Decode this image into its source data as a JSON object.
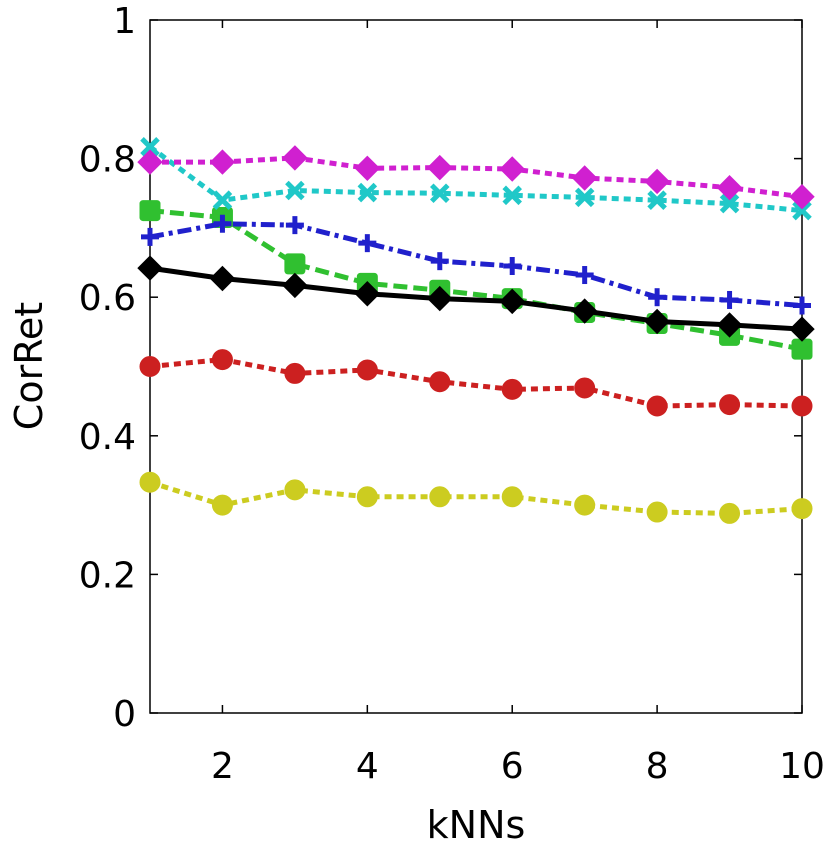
{
  "chart_data": {
    "type": "line",
    "title": "",
    "xlabel": "kNNs",
    "ylabel": "CorRet",
    "xlim": [
      1,
      10
    ],
    "ylim": [
      0,
      1
    ],
    "xticks": [
      2,
      4,
      6,
      8,
      10
    ],
    "yticks": [
      0,
      0.2,
      0.4,
      0.6,
      0.8,
      1
    ],
    "xtick_labels": [
      "2",
      "4",
      "6",
      "8",
      "10"
    ],
    "ytick_labels": [
      "0",
      "0.2",
      "0.4",
      "0.6",
      "0.8",
      "1"
    ],
    "grid": false,
    "legend": "none",
    "x": [
      1,
      2,
      3,
      4,
      5,
      6,
      7,
      8,
      9,
      10
    ],
    "series": [
      {
        "color": "#cc2020",
        "marker": "circle",
        "dash": "dotted",
        "values": [
          0.5,
          0.51,
          0.49,
          0.495,
          0.478,
          0.467,
          0.469,
          0.443,
          0.445,
          0.443
        ]
      },
      {
        "color": "#cccc20",
        "marker": "circle",
        "dash": "dotted",
        "values": [
          0.333,
          0.3,
          0.322,
          0.312,
          0.312,
          0.312,
          0.3,
          0.29,
          0.288,
          0.295
        ]
      },
      {
        "color": "#30c030",
        "marker": "square",
        "dash": "dashed",
        "values": [
          0.725,
          0.715,
          0.648,
          0.62,
          0.61,
          0.598,
          0.578,
          0.562,
          0.545,
          0.525
        ]
      },
      {
        "color": "#2020cc",
        "marker": "plus",
        "dash": "dashdot",
        "values": [
          0.687,
          0.706,
          0.704,
          0.678,
          0.652,
          0.645,
          0.632,
          0.6,
          0.596,
          0.588
        ]
      },
      {
        "color": "#20c8c8",
        "marker": "x",
        "dash": "dotted",
        "values": [
          0.817,
          0.74,
          0.754,
          0.751,
          0.75,
          0.747,
          0.744,
          0.74,
          0.735,
          0.725
        ]
      },
      {
        "color": "#d020d0",
        "marker": "diamond",
        "dash": "dotted",
        "values": [
          0.795,
          0.795,
          0.801,
          0.786,
          0.787,
          0.785,
          0.772,
          0.767,
          0.758,
          0.745
        ]
      },
      {
        "color": "#000000",
        "marker": "diamond",
        "dash": "solid",
        "values": [
          0.642,
          0.627,
          0.617,
          0.605,
          0.598,
          0.594,
          0.58,
          0.565,
          0.56,
          0.554
        ]
      }
    ]
  }
}
